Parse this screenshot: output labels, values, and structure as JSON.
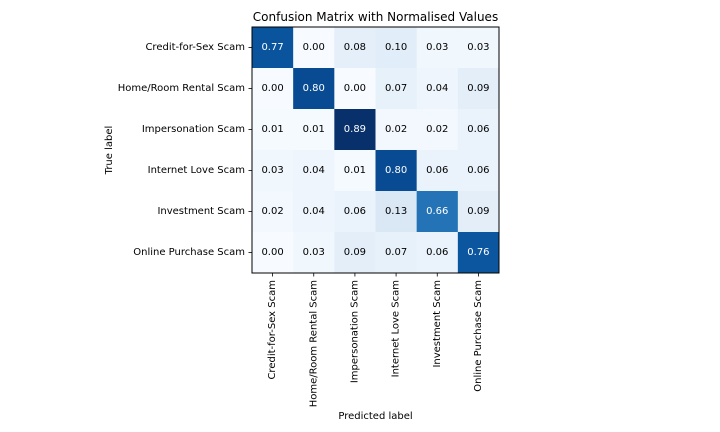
{
  "chart_data": {
    "type": "heatmap",
    "title": "Confusion Matrix with Normalised Values",
    "xlabel": "Predicted label",
    "ylabel": "True label",
    "row_labels": [
      "Credit-for-Sex Scam",
      "Home/Room Rental Scam",
      "Impersonation Scam",
      "Internet Love Scam",
      "Investment Scam",
      "Online Purchase Scam"
    ],
    "col_labels": [
      "Credit-for-Sex Scam",
      "Home/Room Rental Scam",
      "Impersonation Scam",
      "Internet Love Scam",
      "Investment Scam",
      "Online Purchase Scam"
    ],
    "values": [
      [
        0.77,
        0.0,
        0.08,
        0.1,
        0.03,
        0.03
      ],
      [
        0.0,
        0.8,
        0.0,
        0.07,
        0.04,
        0.09
      ],
      [
        0.01,
        0.01,
        0.89,
        0.02,
        0.02,
        0.06
      ],
      [
        0.03,
        0.04,
        0.01,
        0.8,
        0.06,
        0.06
      ],
      [
        0.02,
        0.04,
        0.06,
        0.13,
        0.66,
        0.09
      ],
      [
        0.0,
        0.03,
        0.09,
        0.07,
        0.06,
        0.76
      ]
    ],
    "value_format": "0.00",
    "colormap": "Blues",
    "color_range": [
      0,
      0.89
    ],
    "text_color_dark_bg": "#ffffff",
    "text_color_light_bg": "#000000"
  }
}
